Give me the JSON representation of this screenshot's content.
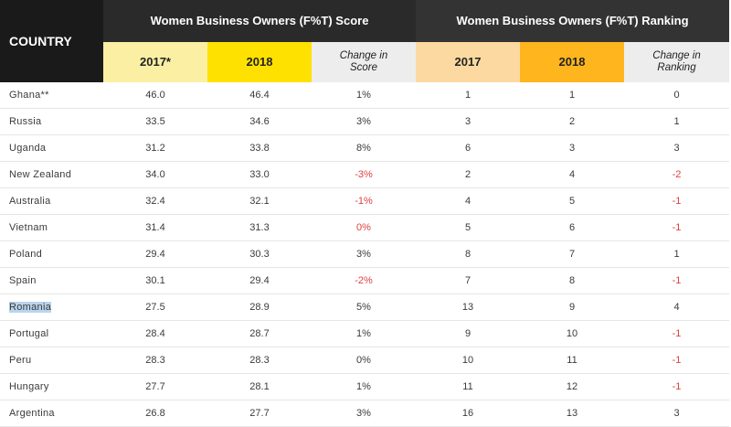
{
  "chart_data": {
    "type": "table",
    "header": {
      "country": "COUNTRY",
      "score_group": "Women Business Owners (F%T) Score",
      "ranking_group": "Women Business Owners (F%T) Ranking",
      "score_2017": "2017*",
      "score_2018": "2018",
      "change_score_line1": "Change in",
      "change_score_line2": "Score",
      "rank_2017": "2017",
      "rank_2018": "2018",
      "change_rank_line1": "Change in",
      "change_rank_line2": "Ranking"
    },
    "rows": [
      {
        "country": "Ghana**",
        "s2017": "46.0",
        "s2018": "46.4",
        "schange": "1%",
        "r2017": "1",
        "r2018": "1",
        "rchange": "0"
      },
      {
        "country": "Russia",
        "s2017": "33.5",
        "s2018": "34.6",
        "schange": "3%",
        "r2017": "3",
        "r2018": "2",
        "rchange": "1"
      },
      {
        "country": "Uganda",
        "s2017": "31.2",
        "s2018": "33.8",
        "schange": "8%",
        "r2017": "6",
        "r2018": "3",
        "rchange": "3"
      },
      {
        "country": "New Zealand",
        "s2017": "34.0",
        "s2018": "33.0",
        "schange": "-3%",
        "r2017": "2",
        "r2018": "4",
        "rchange": "-2"
      },
      {
        "country": "Australia",
        "s2017": "32.4",
        "s2018": "32.1",
        "schange": "-1%",
        "r2017": "4",
        "r2018": "5",
        "rchange": "-1"
      },
      {
        "country": "Vietnam",
        "s2017": "31.4",
        "s2018": "31.3",
        "schange": "0%",
        "r2017": "5",
        "r2018": "6",
        "rchange": "-1"
      },
      {
        "country": "Poland",
        "s2017": "29.4",
        "s2018": "30.3",
        "schange": "3%",
        "r2017": "8",
        "r2018": "7",
        "rchange": "1"
      },
      {
        "country": "Spain",
        "s2017": "30.1",
        "s2018": "29.4",
        "schange": "-2%",
        "r2017": "7",
        "r2018": "8",
        "rchange": "-1"
      },
      {
        "country": "Romania",
        "s2017": "27.5",
        "s2018": "28.9",
        "schange": "5%",
        "r2017": "13",
        "r2018": "9",
        "rchange": "4"
      },
      {
        "country": "Portugal",
        "s2017": "28.4",
        "s2018": "28.7",
        "schange": "1%",
        "r2017": "9",
        "r2018": "10",
        "rchange": "-1"
      },
      {
        "country": "Peru",
        "s2017": "28.3",
        "s2018": "28.3",
        "schange": "0%",
        "r2017": "10",
        "r2018": "11",
        "rchange": "-1"
      },
      {
        "country": "Hungary",
        "s2017": "27.7",
        "s2018": "28.1",
        "schange": "1%",
        "r2017": "11",
        "r2018": "12",
        "rchange": "-1"
      },
      {
        "country": "Argentina",
        "s2017": "26.8",
        "s2018": "27.7",
        "schange": "3%",
        "r2017": "16",
        "r2018": "13",
        "rchange": "3"
      }
    ],
    "negative_score_rows": [
      "New Zealand",
      "Australia",
      "Vietnam",
      "Spain"
    ],
    "selected_country": "Romania",
    "colors": {
      "header_dark": "#1a1a1a",
      "score_2017_bg": "#fbefa3",
      "score_2018_bg": "#ffe100",
      "rank_2017_bg": "#fcd9a0",
      "rank_2018_bg": "#ffb51e",
      "change_bg": "#ededed",
      "negative_text": "#e04040",
      "selection": "#b9d4ee"
    }
  }
}
